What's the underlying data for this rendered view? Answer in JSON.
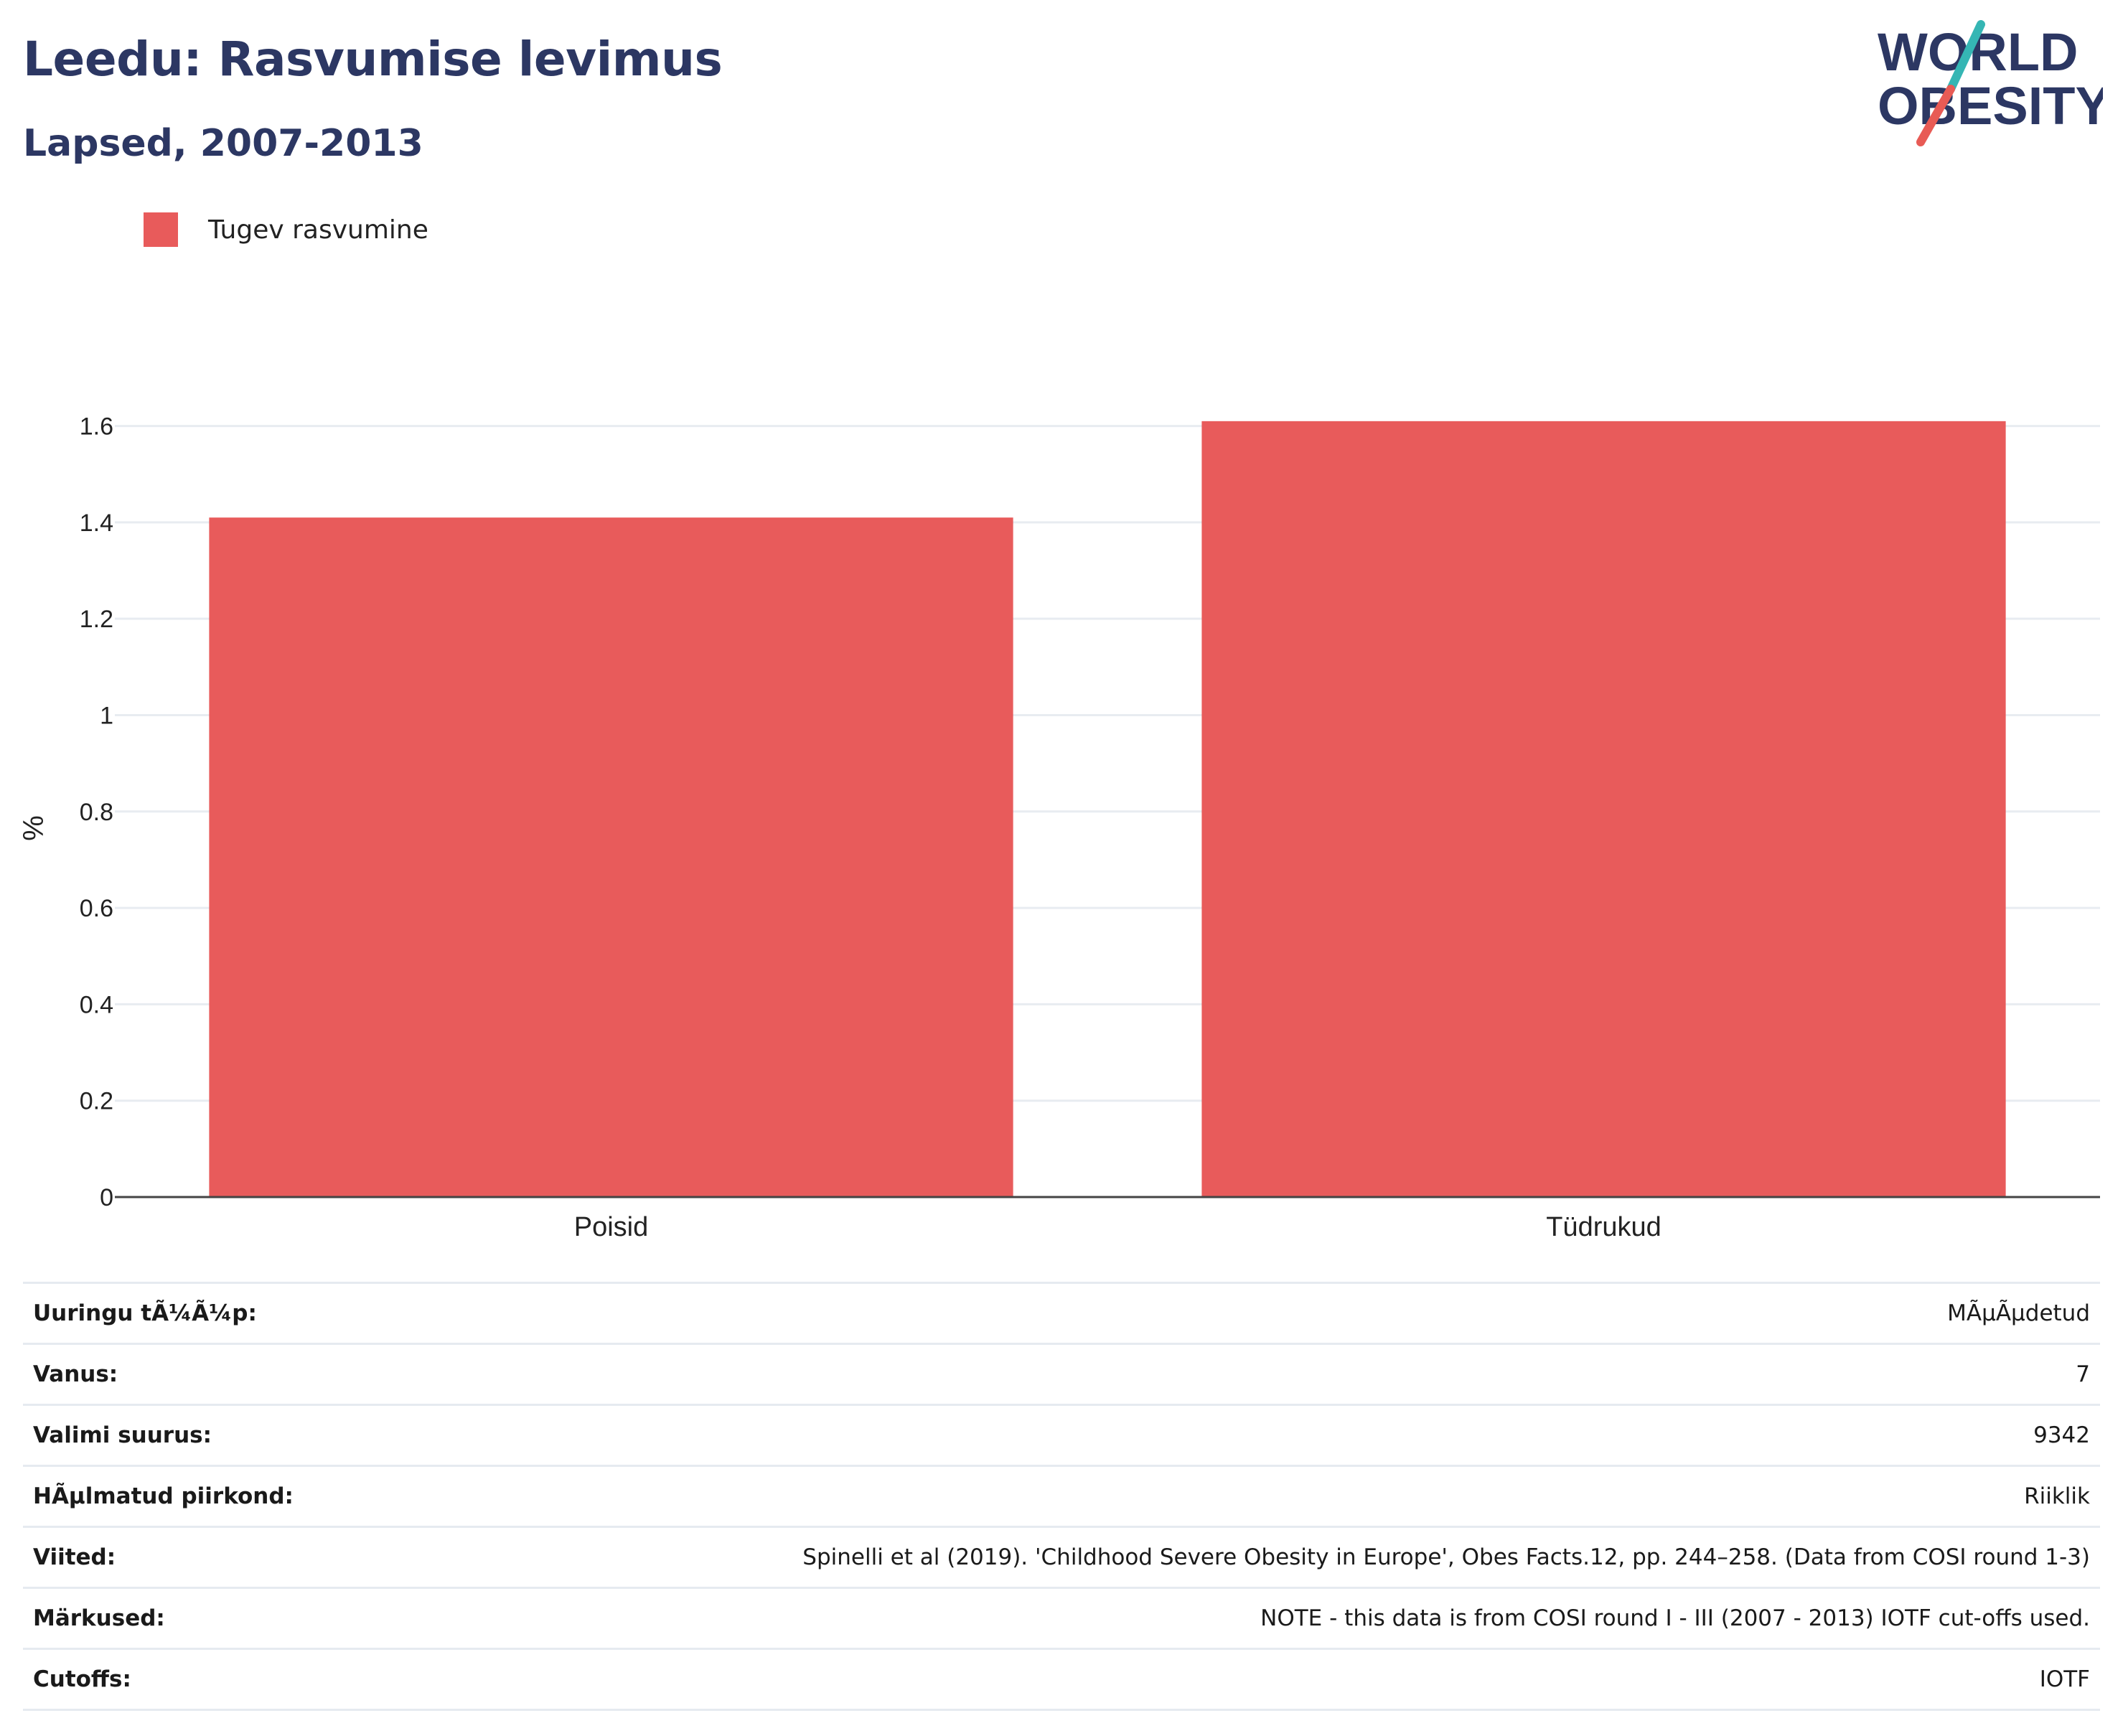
{
  "header": {
    "title": "Leedu: Rasvumise levimus",
    "subtitle": "Lapsed, 2007-2013"
  },
  "logo": {
    "line1": "WORLD",
    "line2": "OBESITY",
    "colors": {
      "text": "#2c3763",
      "slash_top": "#35b6b4",
      "slash_bottom": "#e85b55"
    }
  },
  "chart_data": {
    "type": "bar",
    "categories": [
      "Poisid",
      "Tüdrukud"
    ],
    "series": [
      {
        "name": "Tugev rasvumine",
        "values": [
          1.41,
          1.61
        ],
        "color": "#e85b5b"
      }
    ],
    "ylabel": "%",
    "xlabel": "",
    "ylim": [
      0,
      1.65
    ],
    "yticks": [
      0,
      0.2,
      0.4,
      0.6,
      0.8,
      1,
      1.2,
      1.4,
      1.6
    ],
    "ytick_labels": [
      "0",
      "0.2",
      "0.4",
      "0.6",
      "0.8",
      "1",
      "1.2",
      "1.4",
      "1.6"
    ],
    "grid": true,
    "legend_position": "top-left"
  },
  "info": [
    {
      "key": "Uuringu tÃ¼Ã¼p:",
      "value": "MÃµÃµdetud"
    },
    {
      "key": "Vanus:",
      "value": "7"
    },
    {
      "key": "Valimi suurus:",
      "value": "9342"
    },
    {
      "key": "HÃµlmatud piirkond:",
      "value": "Riiklik"
    },
    {
      "key": "Viited:",
      "value": "Spinelli et al (2019). 'Childhood Severe Obesity in Europe', Obes Facts.12, pp. 244–258. (Data from COSI round 1-3)"
    },
    {
      "key": "Märkused:",
      "value": "NOTE - this data is from COSI round I - III (2007 - 2013) IOTF cut-offs used."
    },
    {
      "key": "Cutoffs:",
      "value": "IOTF"
    }
  ]
}
